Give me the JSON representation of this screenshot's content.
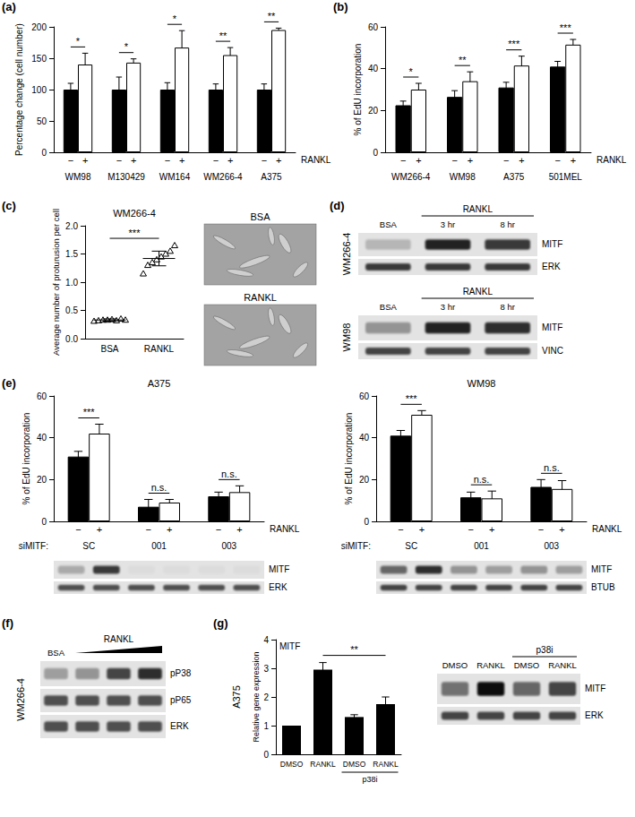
{
  "panel_labels": [
    "(a)",
    "(b)",
    "(c)",
    "(d)",
    "(e)",
    "(f)",
    "(g)"
  ],
  "chart_data": [
    {
      "type": "bar",
      "y_label": "Percentage change (cell number)",
      "groups": [
        "WM98",
        "M130429",
        "WM164",
        "WM266-4",
        "A375"
      ],
      "condition_label": "RANKL",
      "series": [
        {
          "name": "−",
          "color": "#000000",
          "values": [
            100,
            100,
            100,
            100,
            100
          ],
          "errors": [
            10,
            20,
            11,
            9,
            9
          ]
        },
        {
          "name": "+",
          "color": "#ffffff",
          "values": [
            140,
            143,
            167,
            155,
            195
          ],
          "errors": [
            18,
            6,
            27,
            12,
            3
          ]
        }
      ],
      "significance": [
        "*",
        "*",
        "*",
        "**",
        "**"
      ],
      "ylim": [
        0,
        200
      ],
      "yticks": [
        0,
        50,
        100,
        150,
        200
      ]
    },
    {
      "type": "bar",
      "y_label": "% of EdU incorporation",
      "groups": [
        "WM266-4",
        "WM98",
        "A375",
        "501MEL"
      ],
      "condition_label": "RANKL",
      "series": [
        {
          "name": "−",
          "color": "#000000",
          "values": [
            22.5,
            26.5,
            31,
            41
          ],
          "errors": [
            2,
            3,
            2.5,
            2.5
          ]
        },
        {
          "name": "+",
          "color": "#ffffff",
          "values": [
            30,
            34,
            41.5,
            51.5
          ],
          "errors": [
            3,
            4.5,
            4.5,
            2.5
          ]
        }
      ],
      "significance": [
        "*",
        "**",
        "***",
        "***"
      ],
      "ylim": [
        0,
        60
      ],
      "yticks": [
        0,
        20,
        40,
        60
      ]
    },
    {
      "type": "scatter",
      "title": "WM266-4",
      "y_label": "Average number of proturusion per cell",
      "categories": [
        "BSA",
        "RANKL"
      ],
      "points": [
        [
          0.31,
          0.32,
          0.33,
          0.33,
          0.34,
          0.32,
          0.35,
          0.33
        ],
        [
          1.15,
          1.3,
          1.35,
          1.4,
          1.45,
          1.5,
          1.55,
          1.65
        ]
      ],
      "means": [
        0.33,
        1.42
      ],
      "sd": [
        0.02,
        0.13
      ],
      "marker": "triangle",
      "color": "#000000",
      "significance": [
        "***"
      ],
      "ylim": [
        0,
        2
      ],
      "yticks": [
        {
          "value": 0,
          "label": "0.0"
        },
        0.5,
        {
          "value": 1,
          "label": "1.0"
        },
        1.5,
        {
          "value": 2,
          "label": "2.0"
        }
      ]
    },
    {
      "type": "bar",
      "title": "A375",
      "y_label": "% of EdU incorporation",
      "group_label": "siMITF:",
      "groups": [
        "SC",
        "001",
        "003"
      ],
      "condition_label": "RANKL",
      "series": [
        {
          "name": "−",
          "color": "#000000",
          "values": [
            31,
            7,
            12
          ],
          "errors": [
            2.5,
            3.5,
            2
          ]
        },
        {
          "name": "+",
          "color": "#ffffff",
          "values": [
            42,
            9,
            14
          ],
          "errors": [
            4.5,
            1.5,
            3
          ]
        }
      ],
      "significance": [
        "***",
        "n.s.",
        "n.s."
      ],
      "ylim": [
        0,
        60
      ],
      "yticks": [
        0,
        20,
        40,
        60
      ]
    },
    {
      "type": "bar",
      "title": "WM98",
      "y_label": "% of EdU incorporation",
      "group_label": "siMITF:",
      "groups": [
        "SC",
        "001",
        "003"
      ],
      "condition_label": "RANKL",
      "series": [
        {
          "name": "−",
          "color": "#000000",
          "values": [
            41,
            11.5,
            16.5
          ],
          "errors": [
            2.5,
            2.5,
            3.5
          ]
        },
        {
          "name": "+",
          "color": "#ffffff",
          "values": [
            51,
            11,
            15.5
          ],
          "errors": [
            2,
            3.5,
            4
          ]
        }
      ],
      "significance": [
        "***",
        "n.s.",
        "n.s."
      ],
      "ylim": [
        0,
        60
      ],
      "yticks": [
        0,
        20,
        40,
        60
      ]
    },
    {
      "type": "bar",
      "title": "MITF",
      "side_label": "A375",
      "y_label": "Relative gene expression",
      "categories": [
        "DMSO",
        "RANKL",
        "DMSO",
        "RANKL"
      ],
      "values": [
        1,
        2.95,
        1.3,
        1.75
      ],
      "errors": [
        0,
        0.25,
        0.08,
        0.25
      ],
      "color": "#000000",
      "treatment": {
        "label": "p38i",
        "from": 2,
        "to": 3
      },
      "significance": [
        {
          "label": "**",
          "from": 1,
          "to": 3
        }
      ],
      "ylim": [
        0,
        4
      ],
      "yticks": [
        0,
        1,
        2,
        3,
        4
      ]
    }
  ],
  "images": {
    "labels": [
      "BSA",
      "RANKL"
    ]
  },
  "blots": [
    {
      "side_label": "WM266-4",
      "columns": [
        "BSA",
        "3 hr",
        "8 hr"
      ],
      "column_group": {
        "label": "RANKL",
        "from": 1,
        "to": 2,
        "line_style": "line"
      },
      "rows": [
        {
          "label": "MITF",
          "bands": [
            0.2,
            0.85,
            0.75
          ]
        },
        {
          "label": "ERK",
          "bands": [
            0.75,
            0.75,
            0.75
          ]
        }
      ]
    },
    {
      "side_label": "WM98",
      "columns": [
        "BSA",
        "3 hr",
        "8 hr"
      ],
      "column_group": {
        "label": "RANKL",
        "from": 1,
        "to": 2,
        "line_style": "line"
      },
      "rows": [
        {
          "label": "MITF",
          "bands": [
            0.35,
            0.85,
            0.8
          ]
        },
        {
          "label": "VINC",
          "bands": [
            0.7,
            0.7,
            0.7
          ]
        }
      ]
    },
    {
      "rows": [
        {
          "label": "MITF",
          "bands": [
            0.25,
            0.75,
            0.03,
            0.03,
            0.03,
            0.03
          ]
        },
        {
          "label": "ERK",
          "bands": [
            0.65,
            0.65,
            0.65,
            0.65,
            0.65,
            0.65
          ]
        }
      ]
    },
    {
      "rows": [
        {
          "label": "MITF",
          "bands": [
            0.55,
            0.8,
            0.35,
            0.3,
            0.35,
            0.3
          ]
        },
        {
          "label": "BTUB",
          "bands": [
            0.7,
            0.7,
            0.7,
            0.7,
            0.7,
            0.7
          ]
        }
      ]
    },
    {
      "side_label": "WM266-4",
      "columns": [
        "BSA",
        null,
        null,
        null
      ],
      "column_group": {
        "label": "RANKL",
        "from": 1,
        "to": 3,
        "line_style": "ramp"
      },
      "rows": [
        {
          "label": "pP38",
          "bands": [
            0.3,
            0.35,
            0.7,
            0.8
          ]
        },
        {
          "label": "pP65",
          "bands": [
            0.65,
            0.65,
            0.65,
            0.65
          ]
        },
        {
          "label": "ERK",
          "bands": [
            0.65,
            0.65,
            0.65,
            0.65
          ]
        }
      ]
    },
    {
      "columns": [
        "DMSO",
        "RANKL",
        "DMSO",
        "RANKL"
      ],
      "column_group": {
        "label": "p38i",
        "from": 2,
        "to": 3,
        "line_style": "line"
      },
      "rows": [
        {
          "label": "MITF",
          "bands": [
            0.5,
            0.95,
            0.55,
            0.7
          ]
        },
        {
          "label": "ERK",
          "bands": [
            0.7,
            0.7,
            0.7,
            0.7
          ]
        }
      ]
    }
  ]
}
